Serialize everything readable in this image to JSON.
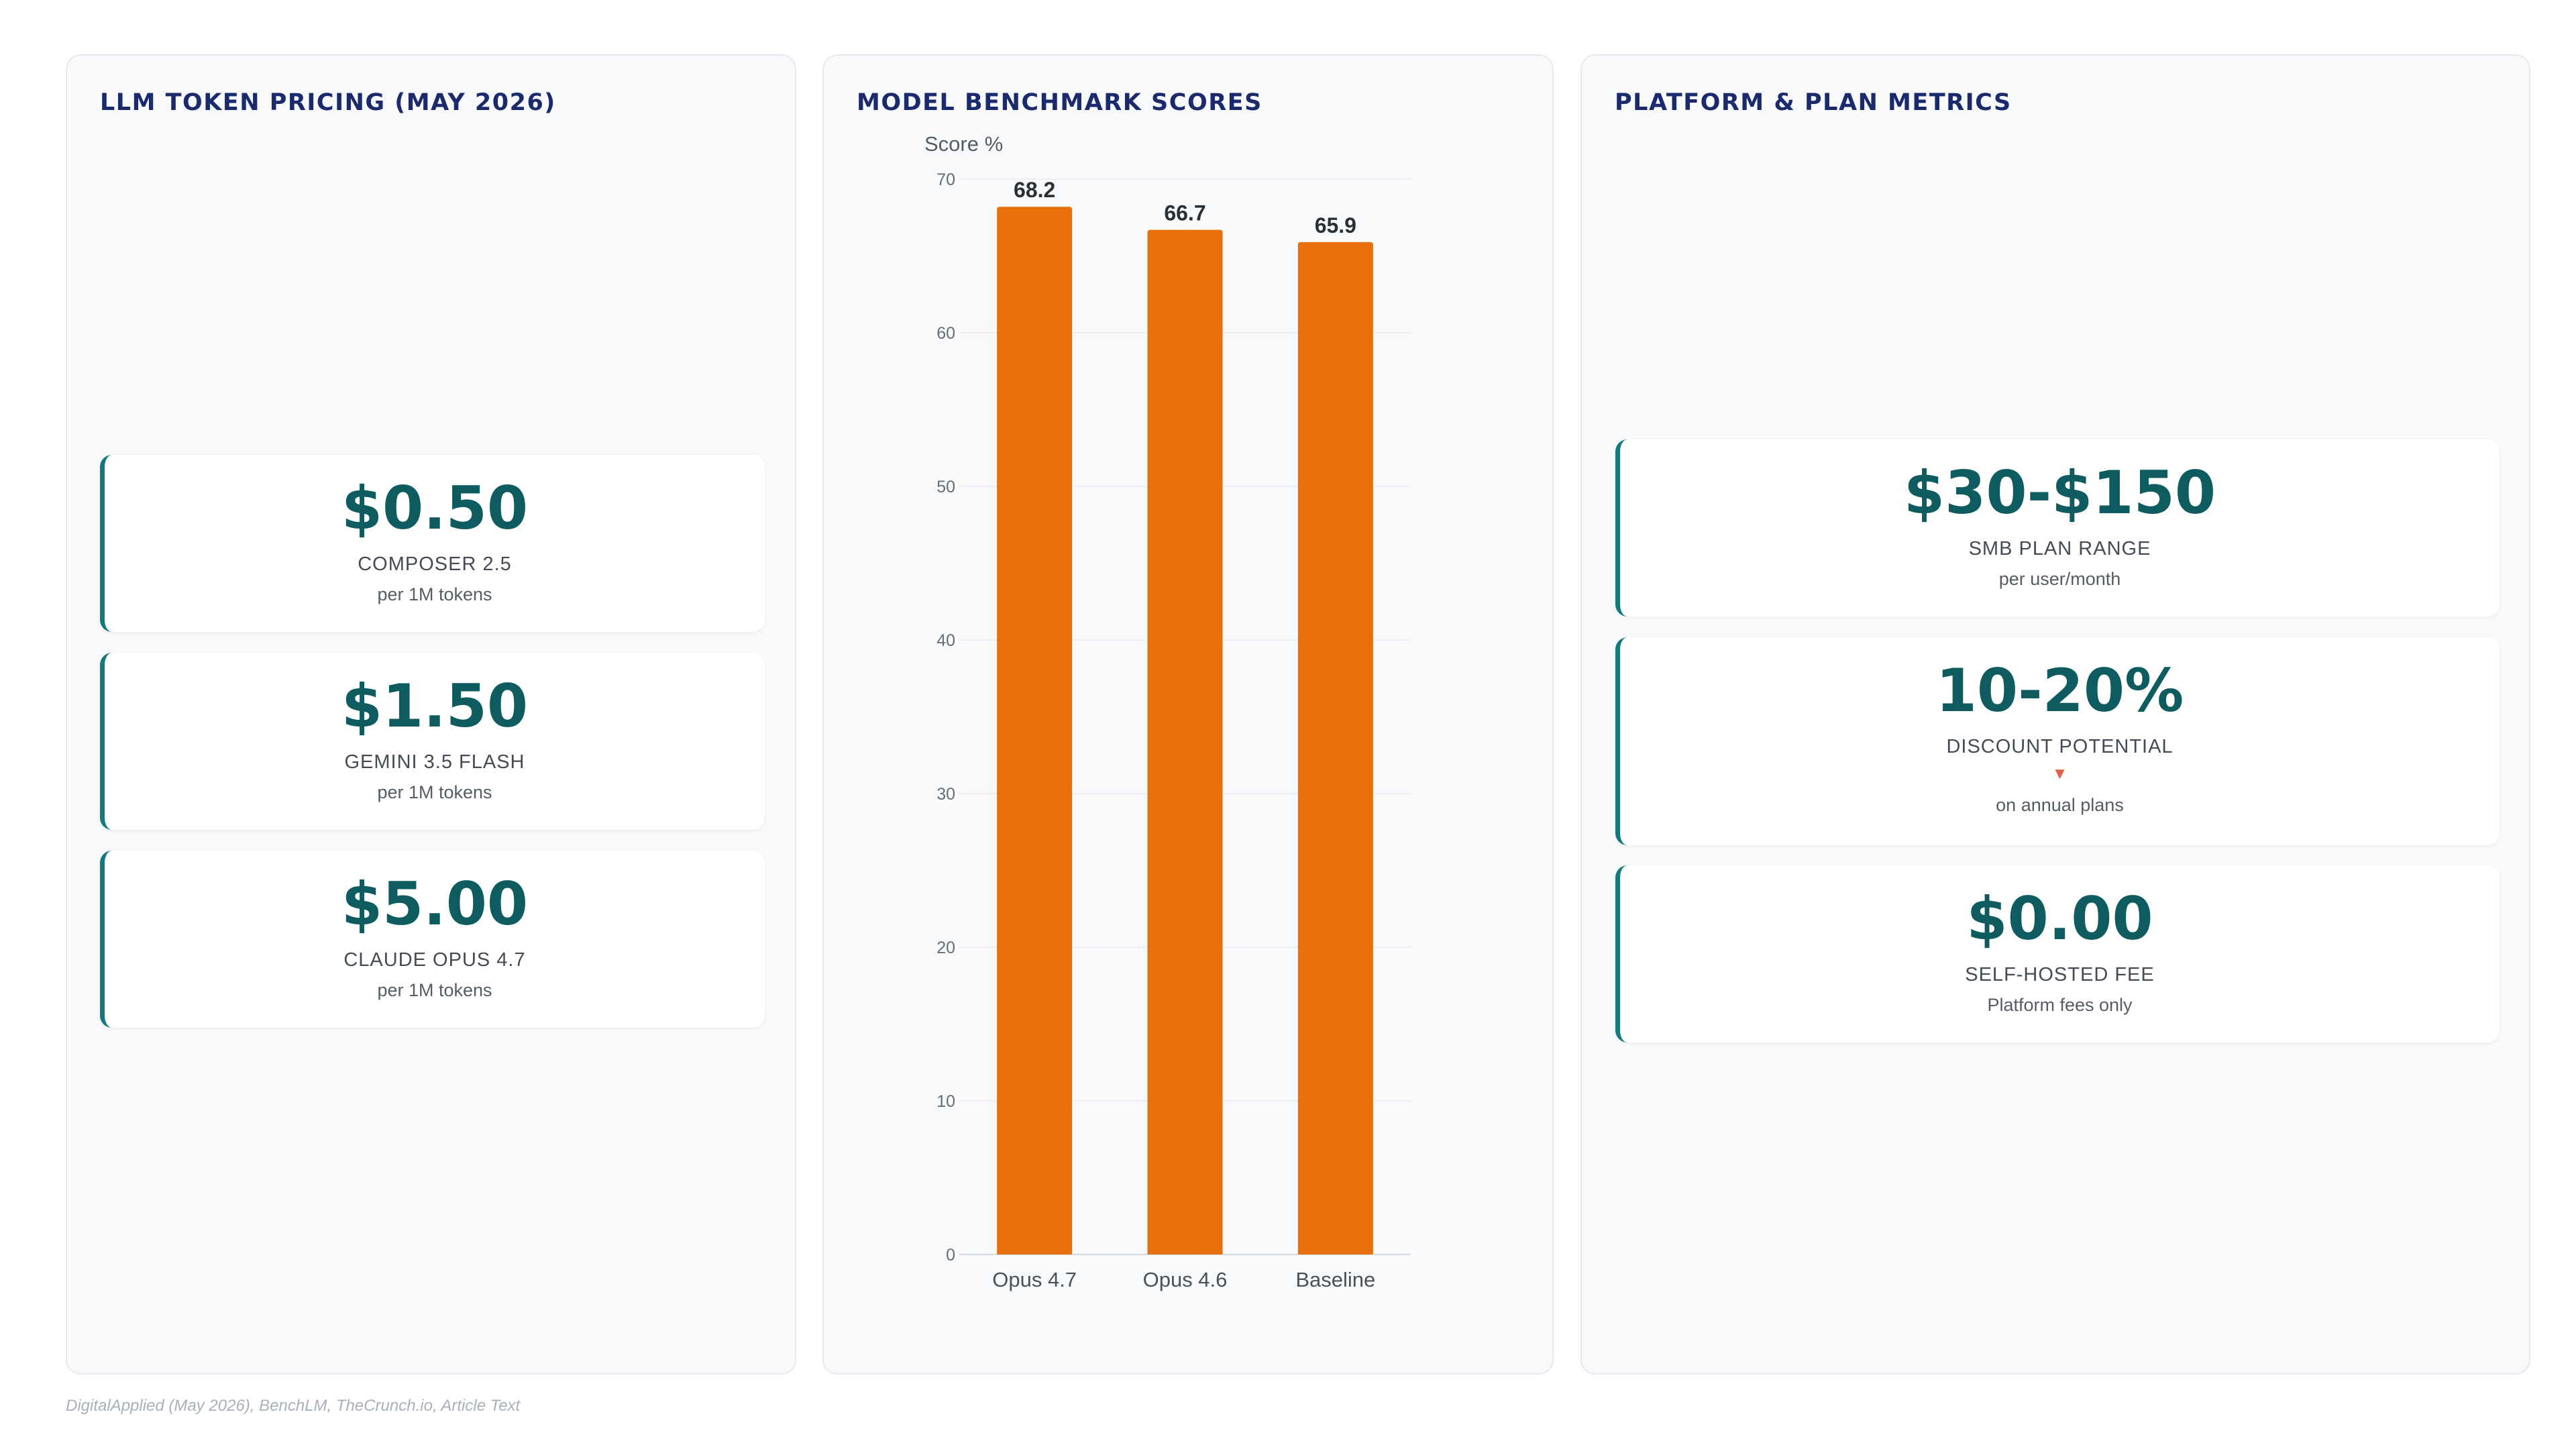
{
  "pricing": {
    "title": "LLM TOKEN PRICING (MAY 2026)",
    "cards": [
      {
        "value": "$0.50",
        "label": "COMPOSER 2.5",
        "sub": "per 1M tokens"
      },
      {
        "value": "$1.50",
        "label": "GEMINI 3.5 FLASH",
        "sub": "per 1M tokens"
      },
      {
        "value": "$5.00",
        "label": "CLAUDE OPUS 4.7",
        "sub": "per 1M tokens"
      }
    ]
  },
  "benchmark": {
    "title": "MODEL BENCHMARK SCORES"
  },
  "metrics": {
    "title": "PLATFORM & PLAN METRICS",
    "cards": [
      {
        "value": "$30-$150",
        "label": "SMB PLAN RANGE",
        "sub": "per user/month"
      },
      {
        "value": "10-20%",
        "label": "DISCOUNT POTENTIAL",
        "arrow": "▼",
        "sub": "on annual plans"
      },
      {
        "value": "$0.00",
        "label": "SELF-HOSTED FEE",
        "sub": "Platform fees only"
      }
    ]
  },
  "chart_data": {
    "type": "bar",
    "categories": [
      "Opus 4.7",
      "Opus 4.6",
      "Baseline"
    ],
    "values": [
      68.2,
      66.7,
      65.9
    ],
    "ylabel": "Score %",
    "ylim": [
      0,
      70
    ],
    "yticks": [
      0,
      10,
      20,
      30,
      40,
      50,
      60,
      70
    ],
    "grid": true,
    "bar_color": "#e8700a"
  },
  "colors": {
    "accent": "#12797f",
    "value_text": "#0e5c5f",
    "title_text": "#1a2a6c",
    "bar": "#e8700a",
    "down_arrow": "#e0604a"
  },
  "footnote": "DigitalApplied (May 2026), BenchLM, TheCrunch.io, Article Text"
}
